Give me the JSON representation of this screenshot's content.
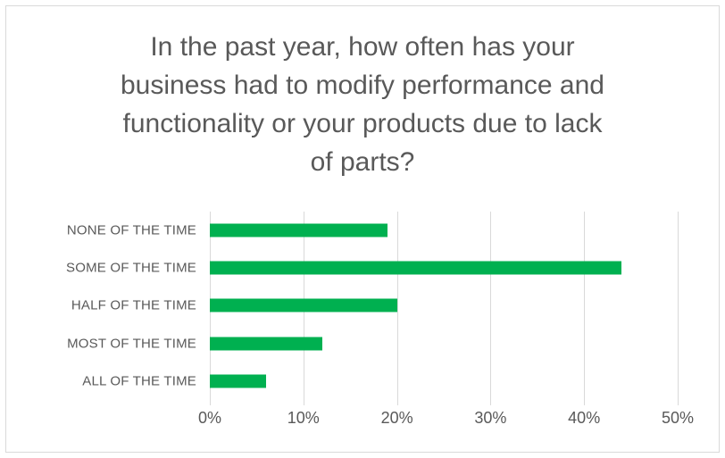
{
  "colors": {
    "bar": "#00B050",
    "text": "#595959",
    "gridline": "#d9d9d9",
    "frame_border": "#d9d9d9",
    "background": "#ffffff"
  },
  "chart_data": {
    "type": "bar",
    "orientation": "horizontal",
    "title": "In the past year, how often has your business had to modify performance and functionality or your products due to lack of parts?",
    "title_lines": [
      "In the past year, how often has your",
      "business had to modify performance and",
      "functionality or your products due to lack",
      "of parts?"
    ],
    "categories": [
      "NONE OF THE TIME",
      "SOME OF THE TIME",
      "HALF OF THE TIME",
      "MOST OF THE TIME",
      "ALL OF THE TIME"
    ],
    "values": [
      19,
      44,
      20,
      12,
      6
    ],
    "unit": "%",
    "xlabel": "",
    "ylabel": "",
    "xlim": [
      0,
      50
    ],
    "x_tick_step": 10,
    "x_tick_labels": [
      "0%",
      "10%",
      "20%",
      "30%",
      "40%",
      "50%"
    ],
    "grid": "vertical-gridlines-on",
    "legend": "none",
    "bar_color": "#00B050"
  }
}
